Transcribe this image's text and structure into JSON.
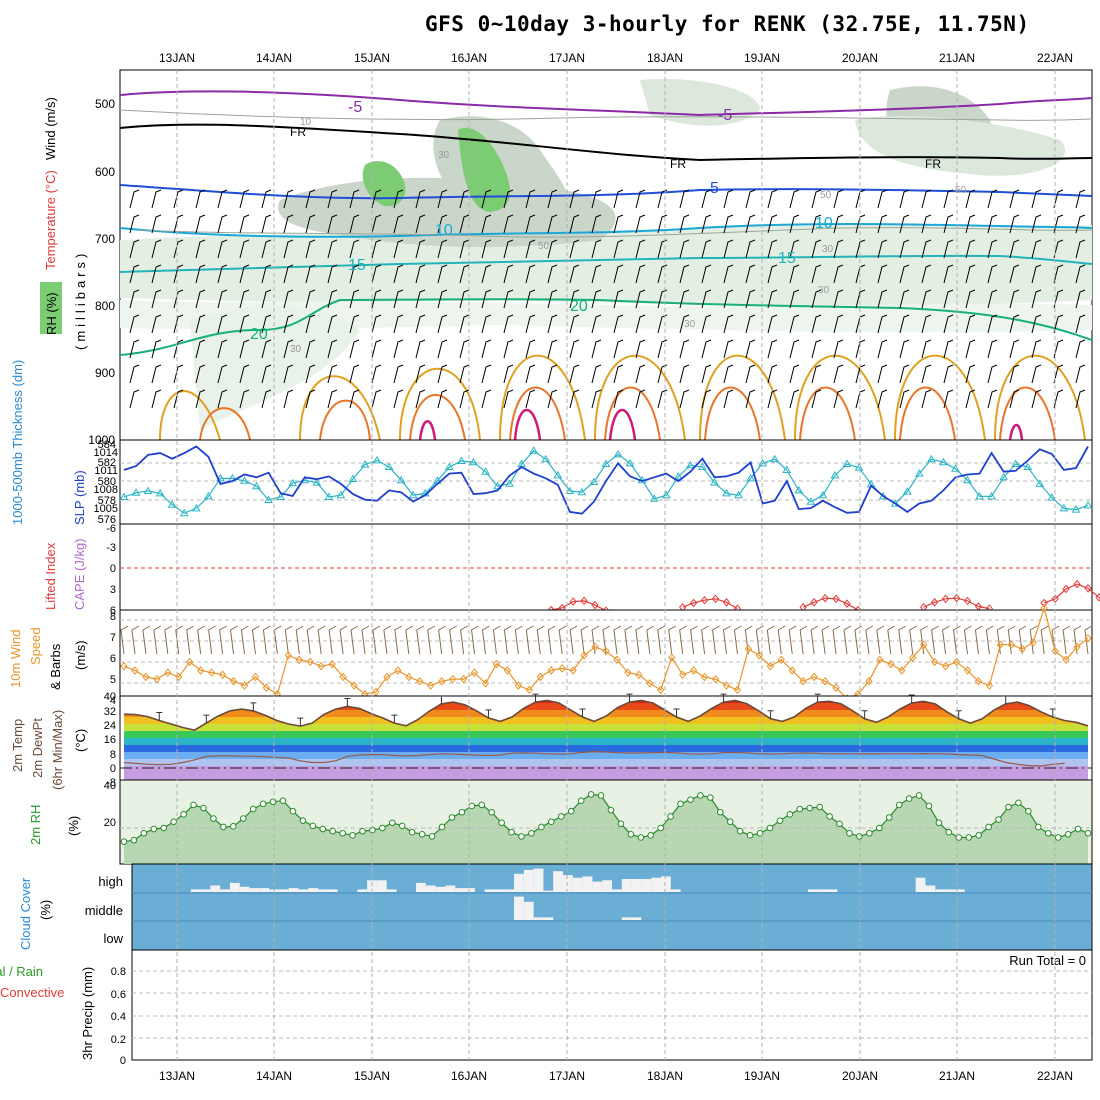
{
  "title": "GFS 0~10day 3-hourly for RENK (32.75E, 11.75N)",
  "x_axis": {
    "dates": [
      "13JAN",
      "14JAN",
      "15JAN",
      "16JAN",
      "17JAN",
      "18JAN",
      "19JAN",
      "20JAN",
      "21JAN",
      "22JAN"
    ]
  },
  "panels": {
    "upper_air": {
      "labels": {
        "rh": "RH (%)",
        "temp": "Temperature (°C)",
        "wind": "Wind (m/s)",
        "mb": "(millibars)"
      },
      "ticks": [
        "500",
        "600",
        "700",
        "800",
        "900",
        "1000"
      ],
      "contour_labels": [
        "-5",
        "-5",
        "FR",
        "FR",
        "FR",
        "5",
        "10",
        "10",
        "15",
        "15",
        "20",
        "20",
        "10",
        "30",
        "30",
        "30",
        "30",
        "50",
        "50",
        "50",
        "30"
      ]
    },
    "thickness_slp": {
      "labels": {
        "thick": "1000-500mb Thickness (dm)",
        "slp": "SLP (mb)"
      },
      "left_ticks": [
        "584",
        "582",
        "580",
        "578",
        "576"
      ],
      "right_ticks": [
        "1014",
        "1011",
        "1008",
        "1005"
      ]
    },
    "cape": {
      "labels": {
        "li": "Lifted Index",
        "cape": "CAPE (J/kg)"
      },
      "ticks": [
        "-6",
        "-3",
        "0",
        "3",
        "6"
      ]
    },
    "wind10m": {
      "labels": {
        "a": "10m Wind",
        "b": "Speed",
        "c": "& Barbs",
        "unit": "(m/s)"
      },
      "ticks": [
        "8",
        "7",
        "6",
        "5",
        "4"
      ]
    },
    "temp2m": {
      "labels": {
        "a": "2m Temp",
        "b": "2m DewPt",
        "c": "(6hr Min/Max)",
        "unit": "(°C)"
      },
      "ticks": [
        "40",
        "32",
        "24",
        "16",
        "8",
        "0",
        "-8"
      ]
    },
    "rh2m": {
      "labels": {
        "a": "2m RH",
        "unit": "(%)"
      },
      "ticks": [
        "40",
        "20"
      ]
    },
    "cloud": {
      "labels": {
        "a": "Cloud Cover",
        "unit": "(%)"
      },
      "levels": [
        "high",
        "middle",
        "low"
      ]
    },
    "precip": {
      "labels": {
        "a": "Total / Rain",
        "b": "Convective",
        "c": "3hr Precip (mm)"
      },
      "ticks": [
        "0.8",
        "0.6",
        "0.4",
        "0.2",
        "0"
      ],
      "run_total": "Run Total = 0"
    }
  },
  "colors": {
    "thickness": "#1f3fcf",
    "slp": "#2ab5c6",
    "lifted_index": "#e33b3b",
    "wind_speed": "#e8952a",
    "barbs": "#8a6a4a",
    "temp_line": "#6b4a3a",
    "dewpoint": "#9a5a4a",
    "rh_fill": "#b7d7b3",
    "rh_line": "#2a8a2a",
    "cloud_bg": "#6aaed6",
    "cloud_bar": "#f2f2f2"
  },
  "chart_data": [
    {
      "type": "line",
      "name": "thickness_slp",
      "series": [
        {
          "name": "1000-500mb Thickness (dm)",
          "axis": "left",
          "values": [
            580.8,
            581.2,
            582.4,
            582.6,
            582.0,
            582.6,
            583.3,
            582.2,
            579.3,
            579.6,
            580.3,
            580.0,
            580.5,
            578.3,
            578.0,
            580.0,
            579.8,
            580.1,
            579.3,
            578.2,
            577.6,
            577.5,
            578.6,
            578.4,
            577.4,
            578.1,
            579.3,
            580.4,
            580.5,
            578.2,
            578.3,
            578.6,
            580.2,
            581.1,
            580.4,
            579.9,
            579.2,
            576.3,
            576.1,
            577.4,
            579.6,
            581.5,
            580.1,
            579.6,
            580.0,
            580.4,
            579.6,
            580.6,
            582.0,
            580.0,
            580.1,
            580.5,
            581.6,
            577.2,
            577.5,
            579.6,
            576.6,
            576.7,
            577.5,
            576.8,
            576.2,
            576.3,
            579.1,
            578.0,
            577.2,
            576.3,
            577.2,
            577.5,
            578.6,
            580.0,
            580.3,
            580.4,
            582.6,
            580.6,
            580.7,
            581.8,
            583.0,
            582.5,
            580.8,
            581.0,
            583.3
          ]
        },
        {
          "name": "SLP (mb)",
          "axis": "right",
          "values": [
            1006.5,
            1007.2,
            1007.5,
            1007.1,
            1005.2,
            1003.8,
            1004.6,
            1006.6,
            1009.6,
            1009.6,
            1009.2,
            1008.3,
            1006.0,
            1006.5,
            1008.8,
            1009.3,
            1008.9,
            1006.5,
            1006.8,
            1009.5,
            1011.9,
            1012.6,
            1011.5,
            1009.3,
            1006.8,
            1007.1,
            1009.2,
            1011.5,
            1012.5,
            1012.3,
            1010.7,
            1008.3,
            1008.7,
            1012.0,
            1014.2,
            1012.8,
            1010.1,
            1007.5,
            1007.3,
            1009.0,
            1012.0,
            1013.6,
            1012.1,
            1009.3,
            1006.2,
            1006.8,
            1009.9,
            1011.8,
            1011.5,
            1008.9,
            1007.1,
            1006.8,
            1009.6,
            1012.1,
            1012.8,
            1011.0,
            1007.6,
            1005.7,
            1006.8,
            1010.1,
            1012.0,
            1011.4,
            1008.6,
            1006.6,
            1005.4,
            1007.4,
            1010.4,
            1012.8,
            1012.3,
            1011.2,
            1009.3,
            1006.6,
            1006.6,
            1009.8,
            1012.0,
            1011.5,
            1008.7,
            1006.4,
            1004.6,
            1004.4,
            1005.1
          ]
        }
      ],
      "ylim_left": [
        575,
        584
      ],
      "ylim_right": [
        1002,
        1016
      ]
    },
    {
      "type": "line",
      "name": "lifted_index",
      "series": [
        {
          "name": "Lifted Index",
          "x_index_start": 39,
          "values": [
            6.0,
            5.7,
            4.8,
            4.7,
            5.3,
            6.1,
            null,
            null,
            null,
            null,
            null,
            null,
            5.6,
            5.0,
            4.6,
            4.4,
            4.9,
            5.8,
            null,
            null,
            null,
            null,
            null,
            5.6,
            4.9,
            4.3,
            4.4,
            5.1,
            6.0,
            null,
            null,
            null,
            null,
            null,
            5.6,
            4.9,
            4.4,
            4.3,
            4.7,
            5.5,
            5.8,
            null,
            null,
            null,
            null,
            5.0,
            4.4,
            3.0,
            2.3,
            2.9,
            4.2,
            5.3,
            6.0
          ]
        }
      ],
      "ylim": [
        -6,
        6
      ]
    },
    {
      "type": "line",
      "name": "wind_speed_10m",
      "series": [
        {
          "name": "10m Wind Speed (m/s)",
          "values": [
            5.2,
            5.0,
            4.7,
            4.6,
            4.9,
            4.7,
            5.4,
            5.0,
            4.9,
            4.8,
            4.5,
            4.3,
            4.7,
            4.2,
            3.9,
            5.7,
            5.5,
            5.4,
            5.2,
            5.3,
            4.7,
            4.3,
            3.9,
            4.0,
            4.7,
            5.0,
            4.7,
            4.5,
            4.3,
            4.5,
            4.6,
            4.6,
            4.9,
            4.4,
            5.3,
            5.0,
            4.3,
            4.1,
            4.7,
            5.0,
            5.1,
            5.0,
            5.7,
            6.1,
            5.9,
            5.5,
            4.9,
            4.8,
            4.4,
            4.1,
            5.6,
            4.8,
            5.0,
            4.7,
            4.6,
            4.3,
            4.1,
            6.0,
            5.7,
            5.2,
            5.5,
            5.0,
            4.5,
            4.7,
            4.5,
            4.2,
            3.7,
            3.9,
            4.5,
            5.5,
            5.3,
            5.0,
            5.6,
            6.2,
            5.4,
            5.2,
            5.4,
            5.0,
            4.5,
            4.3,
            6.2,
            6.2,
            6.0,
            6.3,
            7.9,
            5.9,
            5.5,
            6.1,
            6.5
          ]
        }
      ],
      "ylim": [
        4,
        8
      ]
    },
    {
      "type": "area",
      "name": "temp_2m",
      "series": [
        {
          "name": "2m Temp (°C)",
          "values": [
            29.6,
            29.4,
            28.2,
            26.0,
            24.0,
            22.0,
            20.5,
            24.5,
            28.5,
            31.5,
            32.5,
            31.5,
            29.0,
            26.0,
            24.0,
            22.8,
            24.5,
            29.5,
            32.5,
            34.0,
            33.0,
            30.0,
            27.5,
            24.5,
            23.0,
            26.5,
            31.5,
            35.5,
            36.5,
            35.0,
            31.5,
            27.5,
            25.5,
            28.0,
            33.0,
            36.5,
            37.5,
            36.0,
            32.0,
            28.0,
            25.5,
            28.5,
            33.5,
            36.5,
            37.5,
            36.0,
            32.0,
            28.0,
            25.5,
            28.5,
            33.0,
            36.5,
            37.5,
            35.5,
            31.5,
            27.0,
            25.5,
            28.0,
            33.0,
            36.5,
            37.0,
            35.5,
            31.5,
            27.0,
            25.0,
            28.0,
            32.5,
            36.0,
            37.0,
            35.5,
            31.0,
            27.0,
            24.5,
            27.0,
            32.0,
            35.5,
            36.5,
            34.5,
            31.0,
            28.0,
            26.0,
            25.0,
            23.0
          ]
        },
        {
          "name": "2m DewPt (°C)",
          "values": [
            2.0,
            1.5,
            1.0,
            0.8,
            1.0,
            2.0,
            3.5,
            5.5,
            5.8,
            5.8,
            5.6,
            5.6,
            5.3,
            5.0,
            4.5,
            3.0,
            2.0,
            2.0,
            3.0,
            5.5,
            6.3,
            6.5,
            6.5,
            6.0,
            5.8,
            6.0,
            6.5,
            7.0,
            6.8,
            6.5,
            6.2,
            6.0,
            6.3,
            7.3,
            7.5,
            7.3,
            7.0,
            6.8,
            7.0,
            7.8,
            8.2,
            8.0,
            7.6,
            7.4,
            7.4,
            7.6,
            7.8,
            7.5,
            7.0,
            6.8,
            7.0,
            7.6,
            7.8,
            7.5,
            7.0,
            6.8,
            7.0,
            7.3,
            7.4,
            7.2,
            7.0,
            6.9,
            7.0,
            6.9,
            6.9,
            7.0,
            7.0,
            7.0,
            7.1,
            7.0,
            6.9,
            6.5,
            6.3,
            6.0,
            4.0,
            2.0,
            1.0,
            0.2,
            0.0,
            1.0,
            1.5
          ]
        }
      ],
      "ylim": [
        -8,
        40
      ]
    },
    {
      "type": "area",
      "name": "rh_2m",
      "series": [
        {
          "name": "2m RH (%)",
          "values": [
            13.5,
            14.2,
            17.5,
            19.5,
            20.0,
            23.0,
            26.5,
            31.0,
            29.5,
            24.5,
            20.5,
            20.8,
            24.5,
            29.0,
            31.5,
            32.5,
            33.0,
            28.0,
            23.5,
            21.0,
            19.5,
            18.5,
            17.5,
            16.5,
            18.5,
            19.0,
            20.0,
            22.5,
            21.0,
            18.0,
            17.0,
            16.0,
            20.5,
            25.0,
            27.5,
            30.5,
            31.0,
            27.5,
            22.5,
            18.0,
            16.0,
            17.5,
            20.5,
            23.0,
            25.5,
            28.0,
            33.0,
            36.0,
            35.5,
            28.5,
            22.0,
            17.0,
            15.5,
            16.5,
            20.0,
            25.5,
            31.5,
            33.5,
            35.5,
            34.5,
            27.5,
            23.0,
            18.5,
            16.5,
            17.5,
            20.0,
            23.5,
            26.5,
            29.0,
            29.5,
            30.0,
            25.5,
            22.0,
            17.5,
            16.0,
            17.5,
            20.0,
            25.0,
            31.0,
            34.0,
            35.5,
            30.5,
            22.5,
            18.0,
            15.5,
            15.5,
            16.5,
            20.5,
            24.0,
            30.0,
            32.0,
            28.0,
            20.5,
            17.5,
            15.5,
            17.0,
            19.5,
            17.5
          ]
        }
      ],
      "ylim": [
        0,
        40
      ]
    },
    {
      "type": "bar",
      "name": "cloud_cover",
      "series": [
        {
          "name": "high",
          "values": [
            0,
            0,
            0,
            0,
            0,
            0,
            10,
            10,
            25,
            10,
            35,
            20,
            15,
            15,
            10,
            10,
            15,
            10,
            15,
            10,
            10,
            0,
            0,
            10,
            45,
            45,
            10,
            0,
            0,
            35,
            25,
            20,
            25,
            15,
            15,
            0,
            10,
            10,
            10,
            70,
            85,
            90,
            5,
            80,
            65,
            55,
            60,
            40,
            45,
            10,
            50,
            50,
            50,
            55,
            60,
            10,
            0,
            0,
            0,
            0,
            0,
            0,
            0,
            0,
            0,
            0,
            0,
            0,
            0,
            10,
            10,
            10,
            0,
            0,
            0,
            0,
            0,
            0,
            0,
            0,
            55,
            25,
            10,
            10,
            10,
            0,
            0,
            0,
            0,
            0,
            0,
            0,
            0,
            0,
            0,
            0,
            0,
            0
          ]
        },
        {
          "name": "middle",
          "values": [
            0,
            0,
            0,
            0,
            0,
            0,
            0,
            0,
            0,
            0,
            0,
            0,
            0,
            0,
            0,
            0,
            0,
            0,
            0,
            0,
            0,
            0,
            0,
            0,
            0,
            0,
            0,
            0,
            0,
            0,
            0,
            0,
            0,
            0,
            0,
            0,
            0,
            0,
            0,
            90,
            70,
            10,
            10,
            0,
            0,
            0,
            0,
            0,
            0,
            0,
            10,
            10,
            0,
            0,
            0,
            0,
            0,
            0,
            0,
            0,
            0,
            0,
            0,
            0,
            0,
            0,
            0,
            0,
            0,
            0,
            0,
            0,
            0,
            0,
            0,
            0,
            0,
            0,
            0,
            0,
            0,
            0,
            0,
            0,
            0,
            0,
            0,
            0,
            0,
            0,
            0,
            0,
            0,
            0,
            0,
            0,
            0,
            0
          ]
        },
        {
          "name": "low",
          "values": []
        }
      ],
      "ylim": [
        0,
        100
      ]
    },
    {
      "type": "bar",
      "name": "precip_3hr",
      "series": [
        {
          "name": "3hr Precip (mm)",
          "values": []
        }
      ],
      "ylim": [
        0,
        0.9
      ]
    }
  ]
}
